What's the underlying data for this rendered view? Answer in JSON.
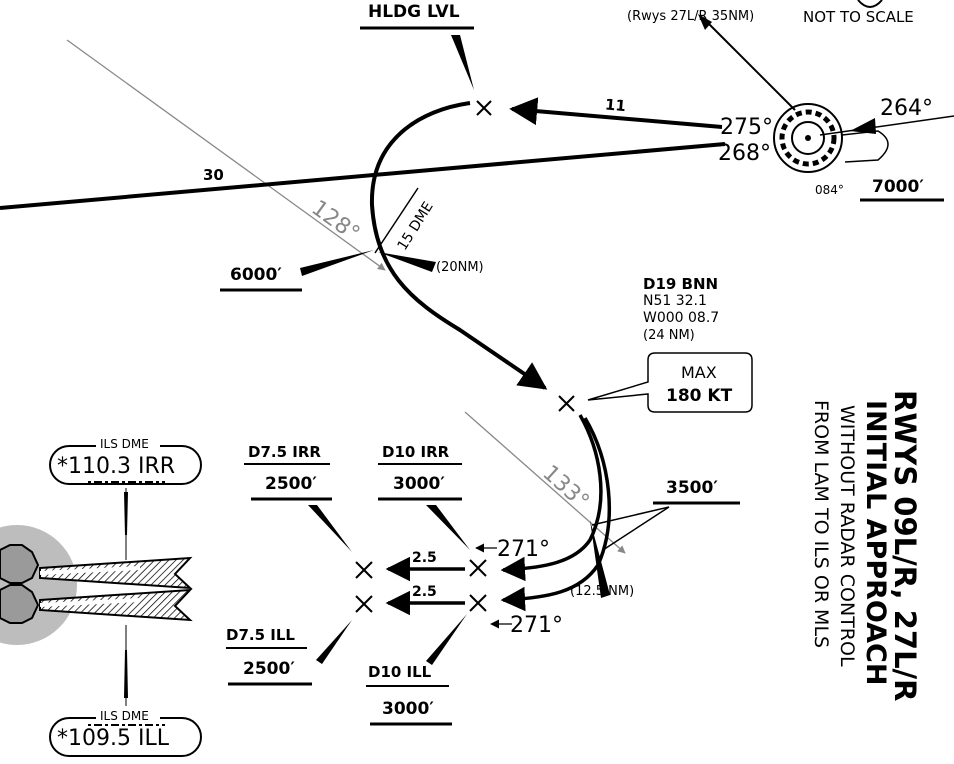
{
  "header": {
    "top_note": "(Rwys 27L/R 35NM)",
    "scale_note": "NOT TO SCALE"
  },
  "hold": {
    "label": "HLDG LVL",
    "inbound_track": "11",
    "course_275": "275°",
    "course_268": "268°",
    "course_264": "264°",
    "course_084": "084°",
    "altitude": "7000′"
  },
  "route": {
    "track_30": "30",
    "radial_128": "128°",
    "dme_15": "15 DME",
    "dist_20": "(20NM)",
    "alt_6000": "6000′",
    "radial_133": "133°",
    "dist_125": "(12.5 NM)",
    "alt_3500": "3500′"
  },
  "fix_d19": {
    "name": "D19 BNN",
    "lat": "N51 32.1",
    "lon": "W000 08.7",
    "dist": "(24 NM)",
    "speed_line1": "MAX",
    "speed_line2": "180 KT"
  },
  "fixes": {
    "d75_irr": {
      "name": "D7.5 IRR",
      "alt": "2500′"
    },
    "d10_irr": {
      "name": "D10 IRR",
      "alt": "3000′"
    },
    "d75_ill": {
      "name": "D7.5 ILL",
      "alt": "2500′"
    },
    "d10_ill": {
      "name": "D10 ILL",
      "alt": "3000′"
    },
    "seg_upper": "2.5",
    "seg_lower": "2.5",
    "hdg_271_upper": "271°",
    "hdg_271_lower": "271°"
  },
  "ils": {
    "upper_caption": "ILS DME",
    "upper_freq": "*110.3 IRR",
    "lower_caption": "ILS DME",
    "lower_freq": "*109.5 ILL"
  },
  "side_title": {
    "line1": "RWYS 09L/R, 27L/R",
    "line2": "INITIAL APPROACH",
    "line3": "WITHOUT RADAR CONTROL",
    "line4": "FROM LAM TO ILS OR MLS"
  }
}
